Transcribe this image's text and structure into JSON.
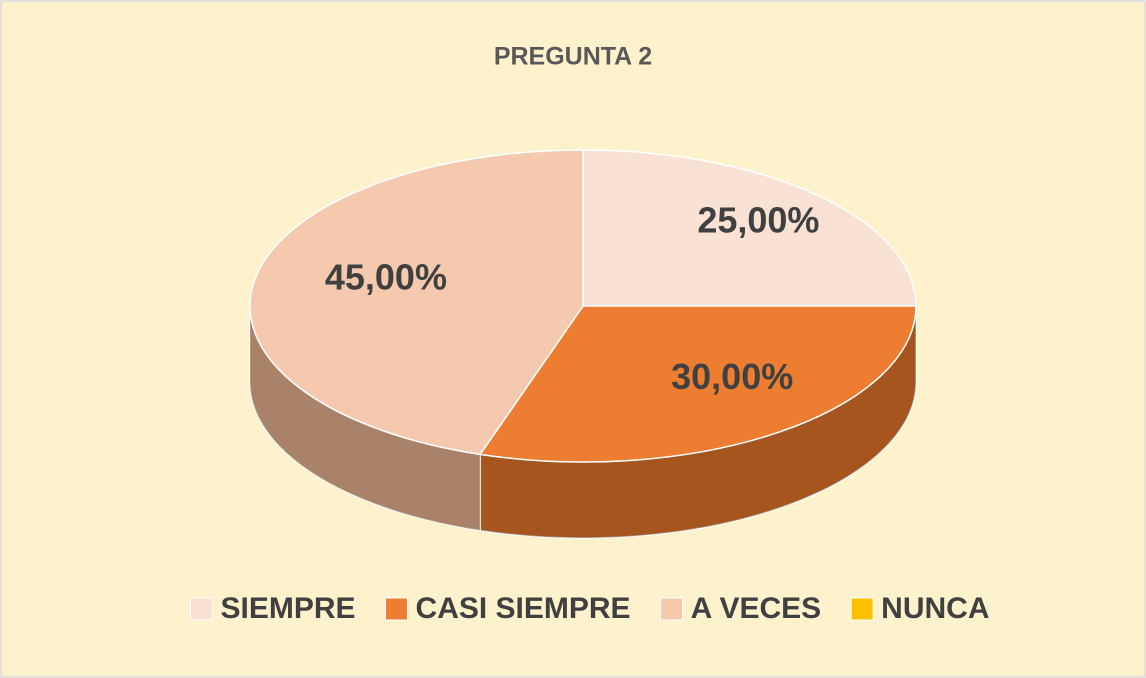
{
  "chart_data": {
    "type": "pie3d",
    "title": "PREGUNTA 2",
    "categories": [
      "SIEMPRE",
      "CASI SIEMPRE",
      "A VECES",
      "NUNCA"
    ],
    "values": [
      25,
      30,
      45,
      0
    ],
    "value_labels": [
      "25,00%",
      "30,00%",
      "45,00%",
      null
    ],
    "colors": [
      "#f9e1d3",
      "#ed7d31",
      "#f5c9ad",
      "#ffc000"
    ],
    "legend": "bottom"
  }
}
